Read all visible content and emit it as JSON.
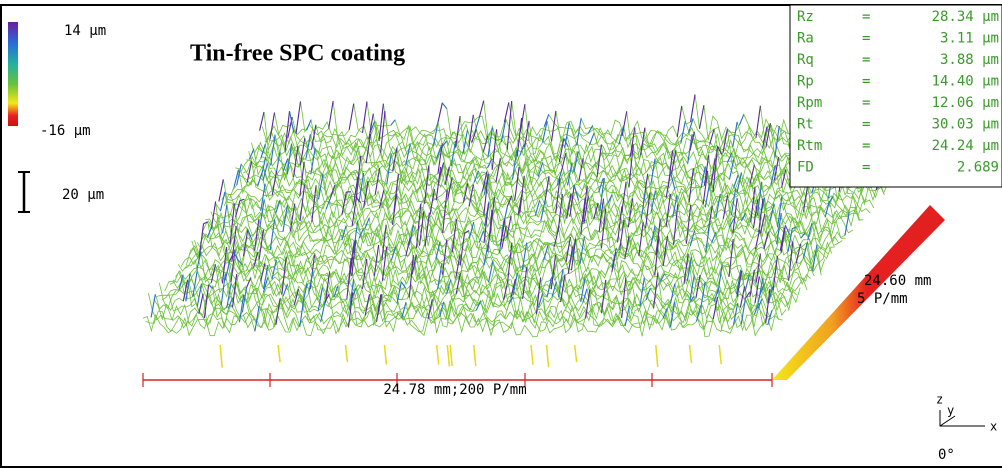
{
  "header": {
    "title": "Tin-free SPC coating"
  },
  "color_scale": {
    "max_label": "14 μm",
    "min_label": "-16 μm"
  },
  "scale_bar": {
    "label": "20 μm"
  },
  "parameters": {
    "rows": [
      {
        "name": "Rz",
        "sign": "=",
        "value": "28.34 μm"
      },
      {
        "name": "Ra",
        "sign": "=",
        "value": "3.11 μm"
      },
      {
        "name": "Rq",
        "sign": "=",
        "value": "3.88 μm"
      },
      {
        "name": "Rp",
        "sign": "=",
        "value": "14.40 μm"
      },
      {
        "name": "Rpm",
        "sign": "=",
        "value": "12.06 μm"
      },
      {
        "name": "Rt",
        "sign": "=",
        "value": "30.03 μm"
      },
      {
        "name": "Rtm",
        "sign": "=",
        "value": "24.24 μm"
      },
      {
        "name": "FD",
        "sign": "=",
        "value": "2.689"
      }
    ]
  },
  "axes": {
    "x_label": "24.78 mm;200 P/mm",
    "y_label_1": "24.60 mm",
    "y_label_2": "5 P/mm",
    "triad": {
      "z": "z",
      "y": "y",
      "x": "x",
      "angle": "0°"
    }
  }
}
